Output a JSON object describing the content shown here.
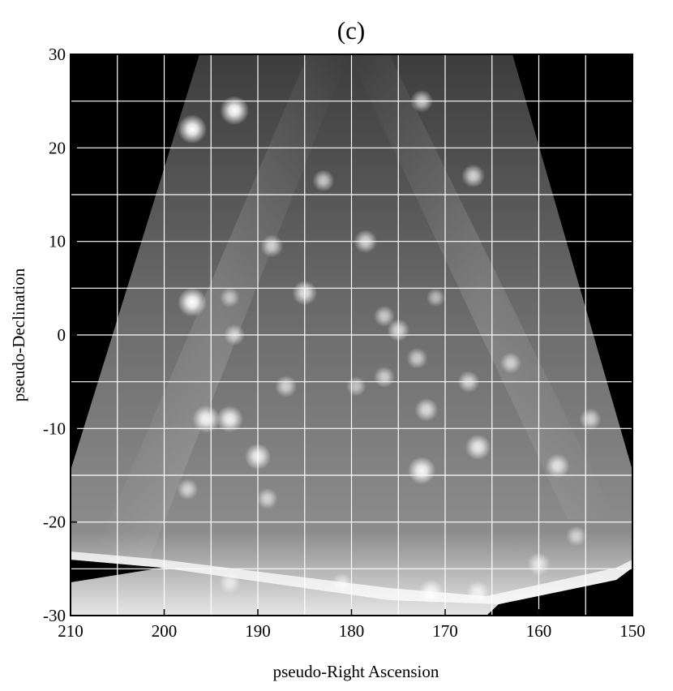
{
  "chart_data": {
    "type": "heatmap",
    "title": "(c)",
    "xlabel": "pseudo-Right Ascension",
    "ylabel": "pseudo-Declination",
    "xlim": [
      210,
      150
    ],
    "ylim": [
      -30,
      30
    ],
    "x_reversed": true,
    "x_ticks": [
      210,
      200,
      190,
      180,
      170,
      160,
      150
    ],
    "y_ticks": [
      30,
      20,
      10,
      0,
      -10,
      -20,
      -30
    ],
    "grid": true,
    "grid_x_step": 5,
    "grid_y_step": 5,
    "colormap": "grayscale",
    "colors": {
      "background": "#000000",
      "grid": "#ffffff",
      "surface": "#7a7a7a"
    },
    "sources": [
      {
        "x": 197.0,
        "y": 22.0,
        "intensity": 1.0
      },
      {
        "x": 192.5,
        "y": 24.0,
        "intensity": 1.0
      },
      {
        "x": 172.5,
        "y": 25.0,
        "intensity": 0.55
      },
      {
        "x": 167.0,
        "y": 17.0,
        "intensity": 0.6
      },
      {
        "x": 183.0,
        "y": 16.5,
        "intensity": 0.5
      },
      {
        "x": 188.5,
        "y": 9.5,
        "intensity": 0.55
      },
      {
        "x": 178.5,
        "y": 10.0,
        "intensity": 0.6
      },
      {
        "x": 197.0,
        "y": 3.5,
        "intensity": 1.0
      },
      {
        "x": 185.0,
        "y": 4.5,
        "intensity": 0.7
      },
      {
        "x": 193.0,
        "y": 4.0,
        "intensity": 0.35
      },
      {
        "x": 171.0,
        "y": 4.0,
        "intensity": 0.3
      },
      {
        "x": 176.5,
        "y": 2.0,
        "intensity": 0.45
      },
      {
        "x": 175.0,
        "y": 0.5,
        "intensity": 0.55
      },
      {
        "x": 192.5,
        "y": 0.0,
        "intensity": 0.45
      },
      {
        "x": 173.0,
        "y": -2.5,
        "intensity": 0.45
      },
      {
        "x": 163.0,
        "y": -3.0,
        "intensity": 0.45
      },
      {
        "x": 187.0,
        "y": -5.5,
        "intensity": 0.5
      },
      {
        "x": 176.5,
        "y": -4.5,
        "intensity": 0.45
      },
      {
        "x": 167.5,
        "y": -5.0,
        "intensity": 0.5
      },
      {
        "x": 179.5,
        "y": -5.5,
        "intensity": 0.35
      },
      {
        "x": 195.5,
        "y": -9.0,
        "intensity": 0.9
      },
      {
        "x": 193.0,
        "y": -9.0,
        "intensity": 0.85
      },
      {
        "x": 172.0,
        "y": -8.0,
        "intensity": 0.6
      },
      {
        "x": 154.5,
        "y": -9.0,
        "intensity": 0.5
      },
      {
        "x": 166.5,
        "y": -12.0,
        "intensity": 0.75
      },
      {
        "x": 190.0,
        "y": -13.0,
        "intensity": 0.8
      },
      {
        "x": 172.5,
        "y": -14.5,
        "intensity": 0.9
      },
      {
        "x": 158.0,
        "y": -14.0,
        "intensity": 0.65
      },
      {
        "x": 197.5,
        "y": -16.5,
        "intensity": 0.45
      },
      {
        "x": 189.0,
        "y": -17.5,
        "intensity": 0.45
      },
      {
        "x": 160.0,
        "y": -24.5,
        "intensity": 0.55
      },
      {
        "x": 156.0,
        "y": -21.5,
        "intensity": 0.4
      },
      {
        "x": 193.0,
        "y": -26.5,
        "intensity": 0.45
      },
      {
        "x": 171.5,
        "y": -27.5,
        "intensity": 0.7
      },
      {
        "x": 166.5,
        "y": -27.5,
        "intensity": 0.55
      },
      {
        "x": 181.0,
        "y": -26.5,
        "intensity": 0.35
      }
    ]
  }
}
